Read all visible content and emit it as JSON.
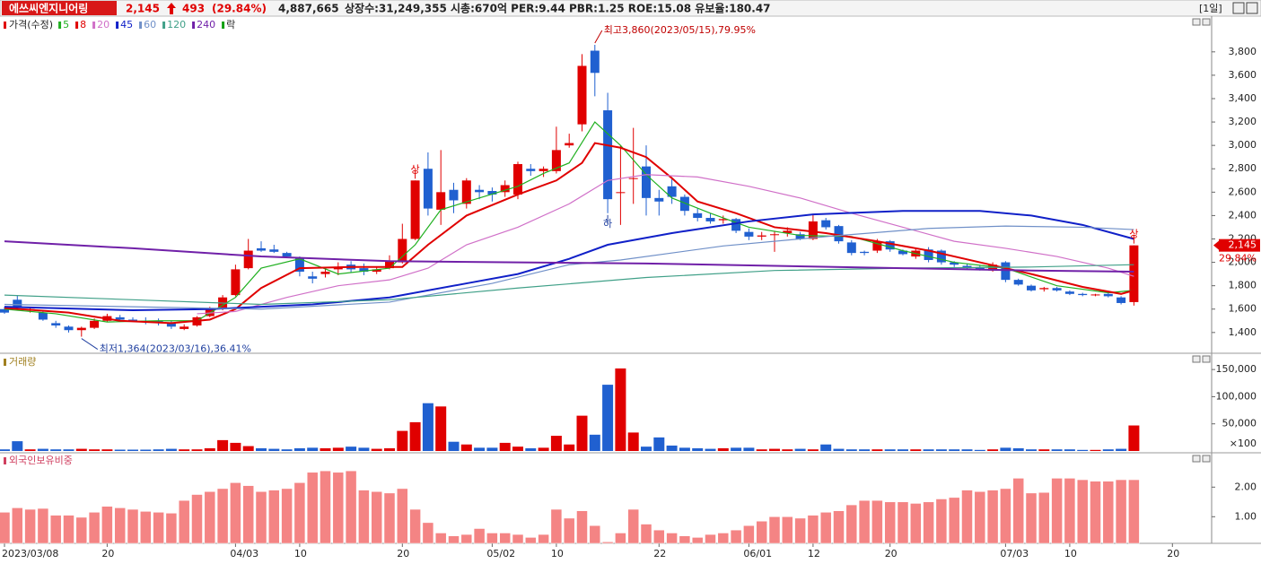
{
  "header": {
    "name": "에쓰씨엔지니어링",
    "price": "2,145",
    "change": "493",
    "change_pct": "(29.84%)",
    "volume": "4,887,665",
    "info": "상장수:31,249,355 시총:670억 PER:9.44 PBR:1.25 ROE:15.08 유보율:180.47",
    "period": "[1일]"
  },
  "chart_data": [
    {
      "type": "candlestick",
      "title": "가격(수정)",
      "legend_extra": "락",
      "legend_extra_color": "#10a010",
      "up_color": "#e00000",
      "down_color": "#2060d0",
      "categories": [
        "2023/03/08",
        null,
        null,
        null,
        null,
        null,
        null,
        null,
        "20",
        null,
        null,
        null,
        null,
        null,
        null,
        null,
        null,
        null,
        "04/03",
        null,
        null,
        null,
        null,
        "10",
        null,
        null,
        null,
        null,
        null,
        null,
        null,
        "20",
        null,
        null,
        null,
        null,
        null,
        null,
        "05/02",
        null,
        null,
        null,
        null,
        "10",
        null,
        null,
        null,
        null,
        null,
        null,
        null,
        "22",
        null,
        null,
        null,
        null,
        null,
        null,
        "06/01",
        null,
        null,
        null,
        null,
        "12",
        null,
        null,
        null,
        null,
        null,
        "20",
        null,
        null,
        null,
        null,
        null,
        null,
        null,
        null,
        "07/03",
        null,
        null,
        null,
        null,
        "10",
        null,
        null,
        null,
        null,
        null,
        null,
        null,
        "20",
        null,
        null
      ],
      "open": [
        1600,
        1680,
        1590,
        1570,
        1480,
        1450,
        1420,
        1440,
        1500,
        1530,
        1510,
        1500,
        1500,
        1480,
        1430,
        1460,
        1540,
        1600,
        1720,
        1950,
        2120,
        2110,
        2080,
        2040,
        1880,
        1900,
        1940,
        1980,
        1950,
        1920,
        1950,
        2000,
        2200,
        2800,
        2450,
        2620,
        2500,
        2620,
        2610,
        2600,
        2580,
        2800,
        2780,
        2780,
        3000,
        3180,
        3810,
        3300,
        2600,
        2720,
        2820,
        2550,
        2650,
        2560,
        2420,
        2380,
        2360,
        2370,
        2260,
        2220,
        2240,
        2250,
        2240,
        2200,
        2360,
        2310,
        2170,
        2090,
        2100,
        2180,
        2100,
        2050,
        2110,
        2100,
        2000,
        1970,
        1960,
        1930,
        2000,
        1850,
        1800,
        1770,
        1780,
        1750,
        1730,
        1720,
        1730,
        1700,
        1660,
        null,
        null,
        null,
        null,
        null
      ],
      "high": [
        1620,
        1720,
        1610,
        1580,
        1500,
        1460,
        1450,
        1520,
        1560,
        1550,
        1530,
        1530,
        1520,
        1500,
        1470,
        1540,
        1620,
        1720,
        1980,
        2200,
        2180,
        2150,
        2090,
        2050,
        1920,
        1950,
        2000,
        2010,
        1990,
        1960,
        2060,
        2330,
        2700,
        2940,
        2960,
        2680,
        2720,
        2660,
        2640,
        2700,
        2860,
        2840,
        2820,
        3160,
        3100,
        3780,
        3860,
        3450,
        3000,
        3150,
        3000,
        2620,
        2720,
        2580,
        2460,
        2420,
        2400,
        2380,
        2290,
        2260,
        2270,
        2300,
        2260,
        2410,
        2380,
        2320,
        2190,
        2100,
        2200,
        2190,
        2110,
        2120,
        2130,
        2110,
        2010,
        1990,
        1970,
        2000,
        2010,
        1860,
        1810,
        1790,
        1790,
        1760,
        1740,
        1730,
        1740,
        1710,
        2145,
        null,
        null,
        null,
        null,
        null
      ],
      "low": [
        1560,
        1600,
        1570,
        1500,
        1440,
        1400,
        1364,
        1430,
        1490,
        1500,
        1490,
        1470,
        1460,
        1430,
        1420,
        1450,
        1530,
        1590,
        1710,
        1940,
        2090,
        2080,
        2040,
        1880,
        1820,
        1870,
        1890,
        1910,
        1890,
        1900,
        1940,
        1990,
        2190,
        2400,
        2320,
        2420,
        2460,
        2540,
        2520,
        2560,
        2540,
        2740,
        2730,
        2760,
        2980,
        3120,
        3420,
        2420,
        2320,
        2500,
        2400,
        2400,
        2500,
        2400,
        2350,
        2330,
        2330,
        2250,
        2190,
        2190,
        2090,
        2220,
        2190,
        2190,
        2280,
        2160,
        2060,
        2060,
        2080,
        2090,
        2060,
        2030,
        2000,
        1980,
        1960,
        1940,
        1930,
        1920,
        1830,
        1800,
        1750,
        1750,
        1750,
        1720,
        1710,
        1710,
        1700,
        1640,
        1630,
        null,
        null,
        null,
        null,
        null
      ],
      "close": [
        1570,
        1620,
        1600,
        1510,
        1460,
        1420,
        1440,
        1500,
        1540,
        1510,
        1500,
        1490,
        1480,
        1450,
        1450,
        1530,
        1600,
        1700,
        1940,
        2100,
        2100,
        2090,
        2050,
        1920,
        1860,
        1920,
        1960,
        1940,
        1920,
        1940,
        2010,
        2200,
        2700,
        2460,
        2600,
        2530,
        2700,
        2600,
        2580,
        2660,
        2840,
        2780,
        2800,
        2960,
        3020,
        3680,
        3620,
        2540,
        2600,
        2720,
        2550,
        2520,
        2560,
        2440,
        2380,
        2350,
        2370,
        2270,
        2220,
        2230,
        2240,
        2270,
        2200,
        2350,
        2300,
        2180,
        2080,
        2080,
        2180,
        2110,
        2070,
        2100,
        2020,
        2000,
        1980,
        1950,
        1940,
        1980,
        1850,
        1810,
        1760,
        1780,
        1760,
        1730,
        1720,
        1725,
        1710,
        1652,
        2145,
        null,
        null,
        null,
        null,
        null
      ],
      "ylim": [
        1230,
        4090
      ],
      "yticks": [
        {
          "value": 1400,
          "label": "1,400"
        },
        {
          "value": 1600,
          "label": "1,600"
        },
        {
          "value": 1800,
          "label": "1,800"
        },
        {
          "value": 2000,
          "label": "2,000"
        },
        {
          "value": 2200,
          "label": "2,200"
        },
        {
          "value": 2400,
          "label": "2,400"
        },
        {
          "value": 2600,
          "label": "2,600"
        },
        {
          "value": 2800,
          "label": "2,800"
        },
        {
          "value": 3000,
          "label": "3,000"
        },
        {
          "value": 3200,
          "label": "3,200"
        },
        {
          "value": 3400,
          "label": "3,400"
        },
        {
          "value": 3600,
          "label": "3,600"
        },
        {
          "value": 3800,
          "label": "3,800"
        }
      ],
      "series": [
        {
          "name": "5",
          "color": "#20b020",
          "x": [
            0,
            4,
            8,
            12,
            15,
            18,
            20,
            23,
            26,
            30,
            32,
            34,
            37,
            40,
            42,
            44,
            46,
            48,
            50,
            52,
            55,
            58,
            62,
            66,
            70,
            74,
            78,
            82,
            86,
            88
          ],
          "values": [
            1600,
            1560,
            1490,
            1500,
            1500,
            1700,
            1950,
            2030,
            1900,
            1950,
            2150,
            2450,
            2550,
            2650,
            2760,
            2850,
            3200,
            3000,
            2750,
            2550,
            2420,
            2300,
            2230,
            2220,
            2100,
            2000,
            1950,
            1800,
            1740,
            1760
          ]
        },
        {
          "name": "8",
          "color": "#e00000",
          "x": [
            0,
            5,
            9,
            13,
            16,
            18,
            20,
            23,
            27,
            31,
            33,
            36,
            40,
            43,
            45,
            46,
            48,
            50,
            52,
            54,
            57,
            60,
            64,
            68,
            72,
            76,
            80,
            84,
            87,
            88
          ],
          "values": [
            1610,
            1570,
            1500,
            1480,
            1510,
            1600,
            1780,
            1950,
            1960,
            1960,
            2150,
            2400,
            2580,
            2700,
            2850,
            3020,
            2980,
            2900,
            2720,
            2520,
            2420,
            2300,
            2250,
            2180,
            2100,
            2000,
            1900,
            1790,
            1730,
            1760
          ]
        },
        {
          "name": "20",
          "color": "#d070c8",
          "x": [
            15,
            18,
            22,
            26,
            30,
            33,
            36,
            40,
            44,
            47,
            50,
            54,
            58,
            62,
            66,
            70,
            74,
            78,
            82,
            86,
            88
          ],
          "values": [
            1560,
            1580,
            1700,
            1800,
            1850,
            1950,
            2150,
            2300,
            2500,
            2700,
            2750,
            2730,
            2650,
            2550,
            2420,
            2300,
            2180,
            2120,
            2050,
            1950,
            1880
          ]
        },
        {
          "name": "45",
          "color": "#1020c8",
          "x": [
            0,
            10,
            16,
            24,
            30,
            36,
            40,
            44,
            47,
            52,
            58,
            63,
            70,
            76,
            80,
            84,
            88
          ],
          "values": [
            1620,
            1590,
            1600,
            1640,
            1700,
            1820,
            1900,
            2030,
            2150,
            2250,
            2350,
            2410,
            2440,
            2440,
            2400,
            2320,
            2200
          ]
        },
        {
          "name": "60",
          "color": "#7090c8",
          "x": [
            0,
            10,
            20,
            30,
            38,
            44,
            48,
            56,
            64,
            72,
            78,
            84,
            88
          ],
          "values": [
            1640,
            1620,
            1600,
            1660,
            1820,
            1980,
            2020,
            2140,
            2220,
            2290,
            2310,
            2300,
            2280
          ]
        },
        {
          "name": "120",
          "color": "#40a088",
          "x": [
            0,
            10,
            20,
            30,
            40,
            50,
            60,
            70,
            80,
            88
          ],
          "values": [
            1720,
            1680,
            1640,
            1680,
            1780,
            1870,
            1930,
            1950,
            1960,
            1980
          ]
        },
        {
          "name": "240",
          "color": "#7020a8",
          "x": [
            0,
            10,
            20,
            30,
            40,
            50,
            60,
            70,
            80,
            88
          ],
          "values": [
            2180,
            2120,
            2050,
            2010,
            2000,
            1990,
            1970,
            1950,
            1930,
            1920
          ]
        }
      ],
      "annotations": [
        {
          "text": "최고3,860(2023/05/15),79.95%",
          "at": 46,
          "anchor": "high",
          "color": "#c00000"
        },
        {
          "text": "최저1,364(2023/03/16),36.41%",
          "at": 6,
          "anchor": "low",
          "color": "#2040a0"
        },
        {
          "text": "상",
          "at": 32,
          "anchor": "high",
          "color": "#e00000"
        },
        {
          "text": "상",
          "at": 88,
          "anchor": "high",
          "color": "#e00000"
        },
        {
          "text": "하",
          "at": 47,
          "anchor": "low",
          "color": "#2040a0"
        }
      ],
      "price_tag": {
        "value": 2145,
        "label": "2,145",
        "change": "29.84%"
      }
    },
    {
      "type": "bar",
      "title": "거래량",
      "title_color": "#a08020",
      "unit": "×100",
      "values": [
        3000,
        18000,
        3000,
        4000,
        3000,
        3000,
        4000,
        3000,
        3000,
        2500,
        2500,
        2500,
        3000,
        4000,
        3000,
        3000,
        5000,
        20000,
        15000,
        9000,
        5000,
        4000,
        3000,
        5000,
        6000,
        5000,
        6000,
        8000,
        6000,
        4000,
        5000,
        37000,
        53000,
        88000,
        82000,
        17000,
        12000,
        6000,
        6000,
        15000,
        8000,
        5000,
        6000,
        28000,
        12000,
        65000,
        30000,
        122000,
        152000,
        34000,
        8000,
        25000,
        10000,
        6000,
        5000,
        4000,
        5000,
        6000,
        6000,
        3000,
        4000,
        3000,
        4000,
        3000,
        12000,
        4000,
        3000,
        3000,
        3000,
        3000,
        3000,
        3000,
        3000,
        3000,
        3000,
        3000,
        2000,
        3000,
        6000,
        5000,
        3000,
        3000,
        3000,
        3000,
        2000,
        2000,
        3000,
        4000,
        47000,
        null,
        null,
        null,
        null,
        null
      ],
      "ylim": [
        0,
        175000
      ],
      "yticks": [
        {
          "value": 50000,
          "label": "50,000"
        },
        {
          "value": 100000,
          "label": "100,000"
        },
        {
          "value": 150000,
          "label": "150,000"
        }
      ]
    },
    {
      "type": "bar",
      "title": "외국인보유비중",
      "title_color": "#d04060",
      "color": "#f48484",
      "values": [
        1.15,
        1.3,
        1.25,
        1.28,
        1.05,
        1.05,
        0.98,
        1.15,
        1.35,
        1.3,
        1.25,
        1.18,
        1.15,
        1.12,
        1.55,
        1.75,
        1.85,
        1.95,
        2.15,
        2.05,
        1.85,
        1.9,
        1.95,
        2.15,
        2.5,
        2.55,
        2.5,
        2.55,
        1.9,
        1.85,
        1.8,
        1.95,
        1.25,
        0.8,
        0.45,
        0.35,
        0.4,
        0.6,
        0.45,
        0.45,
        0.4,
        0.3,
        0.4,
        1.25,
        0.95,
        1.2,
        0.7,
        0.15,
        0.45,
        1.25,
        0.75,
        0.55,
        0.45,
        0.35,
        0.3,
        0.4,
        0.45,
        0.55,
        0.7,
        0.85,
        1.0,
        1.0,
        0.95,
        1.05,
        1.15,
        1.2,
        1.4,
        1.55,
        1.55,
        1.5,
        1.5,
        1.45,
        1.5,
        1.6,
        1.65,
        1.9,
        1.85,
        1.9,
        1.95,
        2.3,
        1.8,
        1.82,
        2.3,
        2.3,
        2.25,
        2.2,
        2.2,
        2.25,
        2.25,
        null,
        null,
        null,
        null,
        null
      ],
      "ylim": [
        0.1,
        3.1
      ],
      "yticks": [
        {
          "value": 1,
          "label": "1.00"
        },
        {
          "value": 2,
          "label": "2.00"
        }
      ]
    }
  ]
}
